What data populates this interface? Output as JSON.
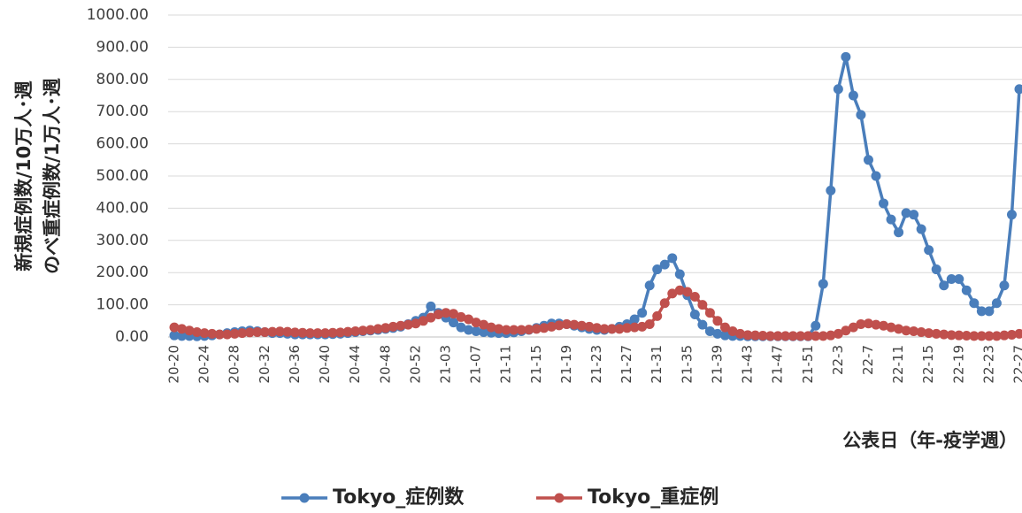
{
  "chart_data": {
    "type": "line",
    "y_axis_title": [
      "新規症例数/10万人･週",
      "のべ重症例数/1万人･週"
    ],
    "x_axis_title": "公表日（年-疫学週）",
    "categories": [
      "20-20",
      null,
      null,
      null,
      "20-24",
      null,
      null,
      null,
      "20-28",
      null,
      null,
      null,
      "20-32",
      null,
      null,
      null,
      "20-36",
      null,
      null,
      null,
      "20-40",
      null,
      null,
      null,
      "20-44",
      null,
      null,
      null,
      "20-48",
      null,
      null,
      null,
      "20-52",
      null,
      null,
      null,
      "21-03",
      null,
      null,
      null,
      "21-07",
      null,
      null,
      null,
      "21-11",
      null,
      null,
      null,
      "21-15",
      null,
      null,
      null,
      "21-19",
      null,
      null,
      null,
      "21-23",
      null,
      null,
      null,
      "21-27",
      null,
      null,
      null,
      "21-31",
      null,
      null,
      null,
      "21-35",
      null,
      null,
      null,
      "21-39",
      null,
      null,
      null,
      "21-43",
      null,
      null,
      null,
      "21-47",
      null,
      null,
      null,
      "21-51",
      null,
      null,
      null,
      "22-3",
      null,
      null,
      null,
      "22-7",
      null,
      null,
      null,
      "22-11",
      null,
      null,
      null,
      "22-15",
      null,
      null,
      null,
      "22-19",
      null,
      null,
      null,
      "22-23",
      null,
      null,
      null,
      "22-27"
    ],
    "series": [
      {
        "name": "Tokyo_症例数",
        "color": "#4a7ebb",
        "values": [
          5,
          3,
          3,
          2,
          3,
          5,
          8,
          12,
          15,
          18,
          20,
          18,
          15,
          12,
          12,
          10,
          8,
          8,
          8,
          8,
          8,
          9,
          10,
          12,
          15,
          18,
          20,
          22,
          25,
          28,
          32,
          40,
          50,
          60,
          95,
          75,
          60,
          45,
          30,
          22,
          18,
          15,
          13,
          12,
          12,
          14,
          18,
          22,
          28,
          35,
          42,
          42,
          40,
          35,
          30,
          25,
          22,
          22,
          25,
          32,
          40,
          55,
          75,
          160,
          210,
          225,
          245,
          195,
          130,
          70,
          38,
          18,
          10,
          5,
          3,
          3,
          2,
          2,
          2,
          2,
          2,
          2,
          2,
          2,
          2,
          35,
          165,
          455,
          770,
          870,
          750,
          690,
          550,
          500,
          415,
          365,
          325,
          385,
          380,
          335,
          270,
          210,
          160,
          180,
          180,
          145,
          105,
          80,
          80,
          105,
          160,
          380,
          770
        ]
      },
      {
        "name": "Tokyo_重症例",
        "color": "#c0504d",
        "values": [
          30,
          25,
          20,
          15,
          12,
          10,
          8,
          8,
          10,
          12,
          14,
          15,
          15,
          16,
          17,
          16,
          14,
          13,
          12,
          12,
          12,
          13,
          14,
          16,
          18,
          20,
          22,
          25,
          28,
          32,
          35,
          38,
          42,
          50,
          60,
          70,
          75,
          72,
          62,
          55,
          45,
          38,
          30,
          25,
          22,
          22,
          22,
          23,
          25,
          28,
          32,
          36,
          40,
          38,
          35,
          32,
          28,
          25,
          25,
          25,
          28,
          30,
          32,
          40,
          65,
          105,
          135,
          145,
          140,
          125,
          100,
          75,
          50,
          30,
          18,
          10,
          6,
          5,
          4,
          3,
          3,
          3,
          3,
          3,
          3,
          3,
          3,
          5,
          10,
          20,
          30,
          40,
          42,
          38,
          35,
          30,
          25,
          20,
          18,
          15,
          12,
          10,
          8,
          6,
          5,
          4,
          3,
          3,
          3,
          3,
          5,
          7,
          10
        ]
      }
    ],
    "ylim": [
      0,
      1000
    ],
    "yticks": [
      {
        "value": 0,
        "label": "0.00"
      },
      {
        "value": 100,
        "label": "100.00"
      },
      {
        "value": 200,
        "label": "200.00"
      },
      {
        "value": 300,
        "label": "300.00"
      },
      {
        "value": 400,
        "label": "400.00"
      },
      {
        "value": 500,
        "label": "500.00"
      },
      {
        "value": 600,
        "label": "600.00"
      },
      {
        "value": 700,
        "label": "700.00"
      },
      {
        "value": 800,
        "label": "800.00"
      },
      {
        "value": 900,
        "label": "900.00"
      },
      {
        "value": 1000,
        "label": "1000.00"
      }
    ],
    "grid": true,
    "legend": "bottom"
  }
}
